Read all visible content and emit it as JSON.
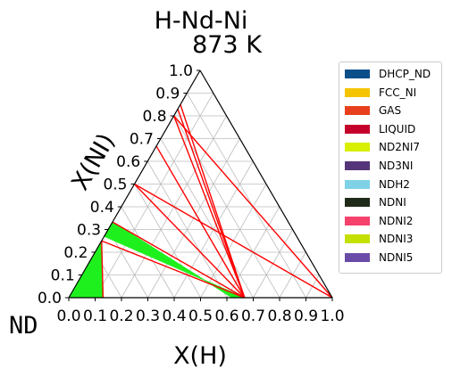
{
  "chart_data": {
    "type": "ternary-phase-diagram",
    "title": "H-Nd-Ni",
    "subtitle": "873  K",
    "xlabel": "X(H)",
    "ylabel": "X(NI)",
    "corner_label": "ND",
    "x_ticks": [
      "0.0",
      "0.1",
      "0.2",
      "0.3",
      "0.4",
      "0.5",
      "0.6",
      "0.7",
      "0.8",
      "0.9",
      "1.0"
    ],
    "y_ticks": [
      "0.0",
      "0.1",
      "0.2",
      "0.3",
      "0.4",
      "0.5",
      "0.6",
      "0.7",
      "0.8",
      "0.9",
      "1.0"
    ],
    "grid": true,
    "legend_position": "right",
    "legend": [
      {
        "name": "DHCP_ND",
        "color": "#0b4f8a"
      },
      {
        "name": "FCC_NI",
        "color": "#f5c400"
      },
      {
        "name": "GAS",
        "color": "#e8401c"
      },
      {
        "name": "LIQUID",
        "color": "#c4002a"
      },
      {
        "name": "ND2NI7",
        "color": "#d8ef00"
      },
      {
        "name": "ND3NI",
        "color": "#55357a"
      },
      {
        "name": "NDH2",
        "color": "#7fd1e6"
      },
      {
        "name": "NDNI",
        "color": "#1f2b18"
      },
      {
        "name": "NDNI2",
        "color": "#f5426b"
      },
      {
        "name": "NDNI3",
        "color": "#c4e000"
      },
      {
        "name": "NDNI5",
        "color": "#6a4ca8"
      }
    ],
    "tie_lines": [
      [
        [
          0.0,
          0.85
        ],
        [
          0.667,
          0.0
        ]
      ],
      [
        [
          0.0,
          0.83
        ],
        [
          0.667,
          0.0
        ]
      ],
      [
        [
          0.0,
          0.8
        ],
        [
          0.667,
          0.0
        ]
      ],
      [
        [
          0.0,
          0.8
        ],
        [
          1.0,
          0.0
        ]
      ],
      [
        [
          0.0,
          0.667
        ],
        [
          0.667,
          0.0
        ]
      ],
      [
        [
          0.0,
          0.5
        ],
        [
          0.667,
          0.0
        ]
      ],
      [
        [
          0.0,
          0.5
        ],
        [
          1.0,
          0.0
        ]
      ],
      [
        [
          0.0,
          0.333
        ],
        [
          0.667,
          0.0
        ]
      ],
      [
        [
          0.0,
          0.25
        ],
        [
          0.667,
          0.0
        ]
      ],
      [
        [
          0.0,
          0.25
        ],
        [
          0.13,
          0.0
        ]
      ]
    ],
    "two_phase_regions": [
      [
        [
          0.0,
          0.333
        ],
        [
          0.0,
          0.27
        ],
        [
          0.667,
          0.0
        ],
        [
          0.62,
          0.0
        ]
      ],
      [
        [
          0.0,
          0.25
        ],
        [
          0.0,
          0.0
        ],
        [
          0.13,
          0.0
        ],
        [
          0.12,
          0.02
        ]
      ]
    ],
    "tie_line_color": "#ff0000",
    "region_color": "#1ef01e"
  }
}
